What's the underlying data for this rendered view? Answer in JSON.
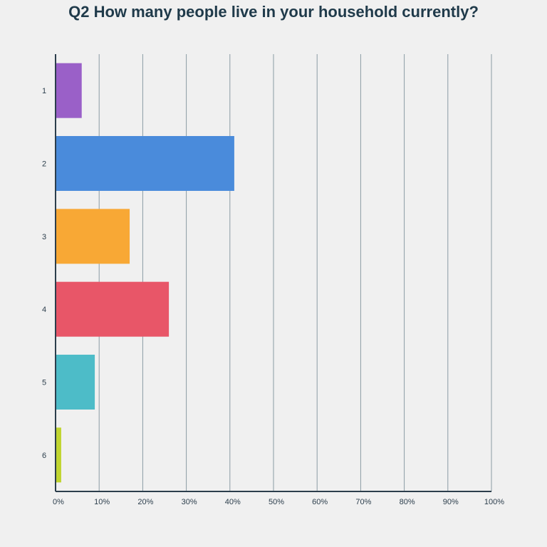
{
  "chart_data": {
    "type": "bar",
    "orientation": "horizontal",
    "title": "Q2 How many people live in your household currently?",
    "categories": [
      "1",
      "2",
      "3",
      "4",
      "5",
      "6"
    ],
    "values": [
      6,
      41,
      17,
      26,
      9,
      1.3
    ],
    "unit": "%",
    "xlim": [
      0,
      100
    ],
    "x_ticks": [
      "0%",
      "10%",
      "20%",
      "30%",
      "40%",
      "50%",
      "60%",
      "70%",
      "80%",
      "90%",
      "100%"
    ],
    "grid": true,
    "legend": "none",
    "colors": [
      "#9a60c8",
      "#4a8bdb",
      "#f8a835",
      "#e85668",
      "#4dbcc8",
      "#c0d530"
    ]
  }
}
